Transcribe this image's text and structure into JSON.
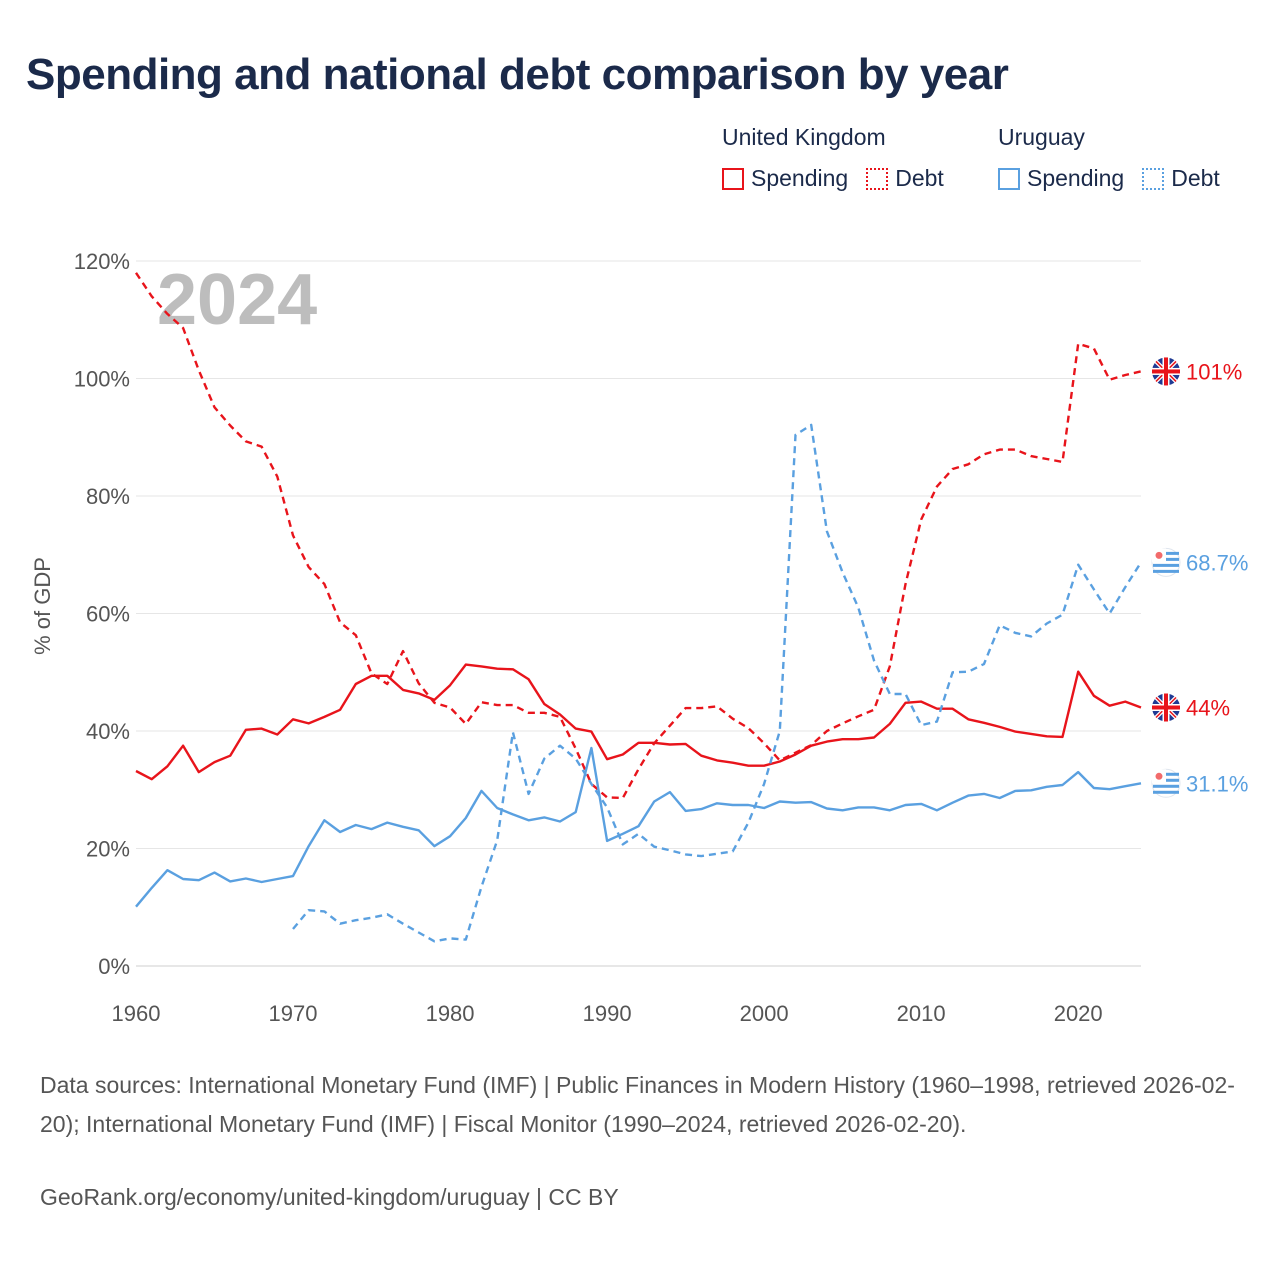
{
  "title": "Spending and national debt comparison by year",
  "legend": {
    "groups": [
      {
        "country": "United Kingdom",
        "color": "#e8141b",
        "items": [
          {
            "label": "Spending",
            "style": "solid"
          },
          {
            "label": "Debt",
            "style": "dotted"
          }
        ]
      },
      {
        "country": "Uruguay",
        "color": "#5aa0e0",
        "items": [
          {
            "label": "Spending",
            "style": "solid"
          },
          {
            "label": "Debt",
            "style": "dotted"
          }
        ]
      }
    ]
  },
  "year_watermark": "2024",
  "footer": {
    "sources": "Data sources: International Monetary Fund (IMF) | Public Finances in Modern History (1960–1998, retrieved 2026-02-20); International Monetary Fund (IMF) | Fiscal Monitor (1990–2024, retrieved 2026-02-20).",
    "credit": "GeoRank.org/economy/united-kingdom/uruguay | CC BY"
  },
  "chart_data": {
    "type": "line",
    "title": "Spending and national debt comparison by year",
    "xlabel": "",
    "ylabel": "% of GDP",
    "xlim": [
      1960,
      2024
    ],
    "ylim": [
      0,
      120
    ],
    "xticks": [
      1960,
      1970,
      1980,
      1990,
      2000,
      2010,
      2020
    ],
    "yticks": [
      0,
      20,
      40,
      60,
      80,
      100,
      120
    ],
    "ytick_labels": [
      "0%",
      "20%",
      "40%",
      "60%",
      "80%",
      "100%",
      "120%"
    ],
    "grid": true,
    "series": [
      {
        "name": "United Kingdom Spending",
        "color": "#e8141b",
        "dash": "solid",
        "end_label": "44%",
        "flag": "uk",
        "x": [
          1960,
          1961,
          1962,
          1963,
          1964,
          1965,
          1966,
          1967,
          1968,
          1969,
          1970,
          1971,
          1972,
          1973,
          1974,
          1975,
          1976,
          1977,
          1978,
          1979,
          1980,
          1981,
          1982,
          1983,
          1984,
          1985,
          1986,
          1987,
          1988,
          1989,
          1990,
          1991,
          1992,
          1993,
          1994,
          1995,
          1996,
          1997,
          1998,
          1999,
          2000,
          2001,
          2002,
          2003,
          2004,
          2005,
          2006,
          2007,
          2008,
          2009,
          2010,
          2011,
          2012,
          2013,
          2014,
          2015,
          2016,
          2017,
          2018,
          2019,
          2020,
          2021,
          2022,
          2023,
          2024
        ],
        "values": [
          33.2,
          31.8,
          34.0,
          37.5,
          33.0,
          34.7,
          35.8,
          40.2,
          40.4,
          39.4,
          42.0,
          41.3,
          42.4,
          43.6,
          48.0,
          49.4,
          49.4,
          47.0,
          46.4,
          45.3,
          47.8,
          51.3,
          51.0,
          50.6,
          50.5,
          48.8,
          44.6,
          42.8,
          40.4,
          39.9,
          35.2,
          36.0,
          38.0,
          38.0,
          37.7,
          37.8,
          35.8,
          35.0,
          34.6,
          34.1,
          34.1,
          34.8,
          36.0,
          37.5,
          38.2,
          38.6,
          38.6,
          38.9,
          41.2,
          44.8,
          45.0,
          43.8,
          43.8,
          42.0,
          41.4,
          40.7,
          39.9,
          39.5,
          39.1,
          39.0,
          50.1,
          46.0,
          44.3,
          45.0,
          44.0
        ]
      },
      {
        "name": "United Kingdom Debt",
        "color": "#e8141b",
        "dash": "dotted",
        "end_label": "101%",
        "flag": "uk",
        "x": [
          1960,
          1961,
          1962,
          1963,
          1964,
          1965,
          1966,
          1967,
          1968,
          1969,
          1970,
          1971,
          1972,
          1973,
          1974,
          1975,
          1976,
          1977,
          1978,
          1979,
          1980,
          1981,
          1982,
          1983,
          1984,
          1985,
          1986,
          1987,
          1988,
          1989,
          1990,
          1991,
          1992,
          1993,
          1994,
          1995,
          1996,
          1997,
          1998,
          1999,
          2000,
          2001,
          2002,
          2003,
          2004,
          2005,
          2006,
          2007,
          2008,
          2009,
          2010,
          2011,
          2012,
          2013,
          2014,
          2015,
          2016,
          2017,
          2018,
          2019,
          2020,
          2021,
          2022,
          2023,
          2024
        ],
        "values": [
          118.0,
          114.0,
          111.0,
          108.6,
          101.4,
          95.1,
          92.0,
          89.3,
          88.4,
          83.3,
          73.3,
          67.9,
          65.0,
          58.5,
          56.3,
          49.8,
          48.0,
          53.6,
          48.1,
          44.8,
          44.0,
          41.2,
          44.9,
          44.4,
          44.4,
          43.1,
          43.1,
          42.4,
          37.0,
          31.0,
          28.7,
          28.6,
          33.5,
          37.9,
          40.9,
          43.9,
          43.9,
          44.2,
          42.1,
          40.5,
          37.9,
          35.0,
          36.3,
          37.6,
          40.0,
          41.3,
          42.5,
          43.6,
          51.0,
          65.0,
          76.0,
          81.6,
          84.6,
          85.4,
          87.1,
          87.9,
          87.9,
          86.8,
          86.3,
          85.8,
          105.9,
          105.1,
          99.8,
          100.6,
          101.2
        ]
      },
      {
        "name": "Uruguay Spending",
        "color": "#5aa0e0",
        "dash": "solid",
        "end_label": "31.1%",
        "flag": "uy",
        "x": [
          1960,
          1961,
          1962,
          1963,
          1964,
          1965,
          1966,
          1967,
          1968,
          1969,
          1970,
          1971,
          1972,
          1973,
          1974,
          1975,
          1976,
          1977,
          1978,
          1979,
          1980,
          1981,
          1982,
          1983,
          1984,
          1985,
          1986,
          1987,
          1988,
          1989,
          1990,
          1991,
          1992,
          1993,
          1994,
          1995,
          1996,
          1997,
          1998,
          1999,
          2000,
          2001,
          2002,
          2003,
          2004,
          2005,
          2006,
          2007,
          2008,
          2009,
          2010,
          2011,
          2012,
          2013,
          2014,
          2015,
          2016,
          2017,
          2018,
          2019,
          2020,
          2021,
          2022,
          2023,
          2024
        ],
        "values": [
          10.1,
          13.3,
          16.3,
          14.8,
          14.6,
          15.9,
          14.4,
          14.9,
          14.3,
          14.8,
          15.3,
          20.4,
          24.8,
          22.8,
          24.0,
          23.3,
          24.4,
          23.7,
          23.1,
          20.4,
          22.1,
          25.2,
          29.8,
          26.9,
          25.8,
          24.8,
          25.3,
          24.6,
          26.2,
          37.1,
          21.3,
          22.5,
          23.8,
          28.0,
          29.6,
          26.4,
          26.7,
          27.7,
          27.4,
          27.4,
          26.9,
          28.0,
          27.8,
          27.9,
          26.8,
          26.5,
          27.0,
          27.0,
          26.5,
          27.4,
          27.6,
          26.5,
          27.8,
          29.0,
          29.3,
          28.6,
          29.8,
          29.9,
          30.5,
          30.8,
          33.0,
          30.3,
          30.1,
          30.6,
          31.1
        ]
      },
      {
        "name": "Uruguay Debt",
        "color": "#5aa0e0",
        "dash": "dotted",
        "end_label": "68.7%",
        "flag": "uy",
        "x": [
          1970,
          1971,
          1972,
          1973,
          1974,
          1975,
          1976,
          1977,
          1978,
          1979,
          1980,
          1981,
          1982,
          1983,
          1984,
          1985,
          1986,
          1987,
          1988,
          1989,
          1990,
          1991,
          1992,
          1993,
          1994,
          1995,
          1996,
          1997,
          1998,
          1999,
          2000,
          2001,
          2002,
          2003,
          2004,
          2005,
          2006,
          2007,
          2008,
          2009,
          2010,
          2011,
          2012,
          2013,
          2014,
          2015,
          2016,
          2017,
          2018,
          2019,
          2020,
          2021,
          2022,
          2023,
          2024
        ],
        "values": [
          6.3,
          9.5,
          9.3,
          7.2,
          7.8,
          8.2,
          8.8,
          7.2,
          5.7,
          4.2,
          4.7,
          4.5,
          13.5,
          21.4,
          39.8,
          29.3,
          35.3,
          37.5,
          35.3,
          31.0,
          27.0,
          20.7,
          22.5,
          20.3,
          19.7,
          19.0,
          18.7,
          19.1,
          19.5,
          24.4,
          31.0,
          40.0,
          90.4,
          92.1,
          74.0,
          67.0,
          61.0,
          52.0,
          46.3,
          46.3,
          41.0,
          41.6,
          50.0,
          50.1,
          51.4,
          58.0,
          56.7,
          56.1,
          58.3,
          59.8,
          68.3,
          64.1,
          60.0,
          64.5,
          68.7
        ]
      }
    ]
  }
}
